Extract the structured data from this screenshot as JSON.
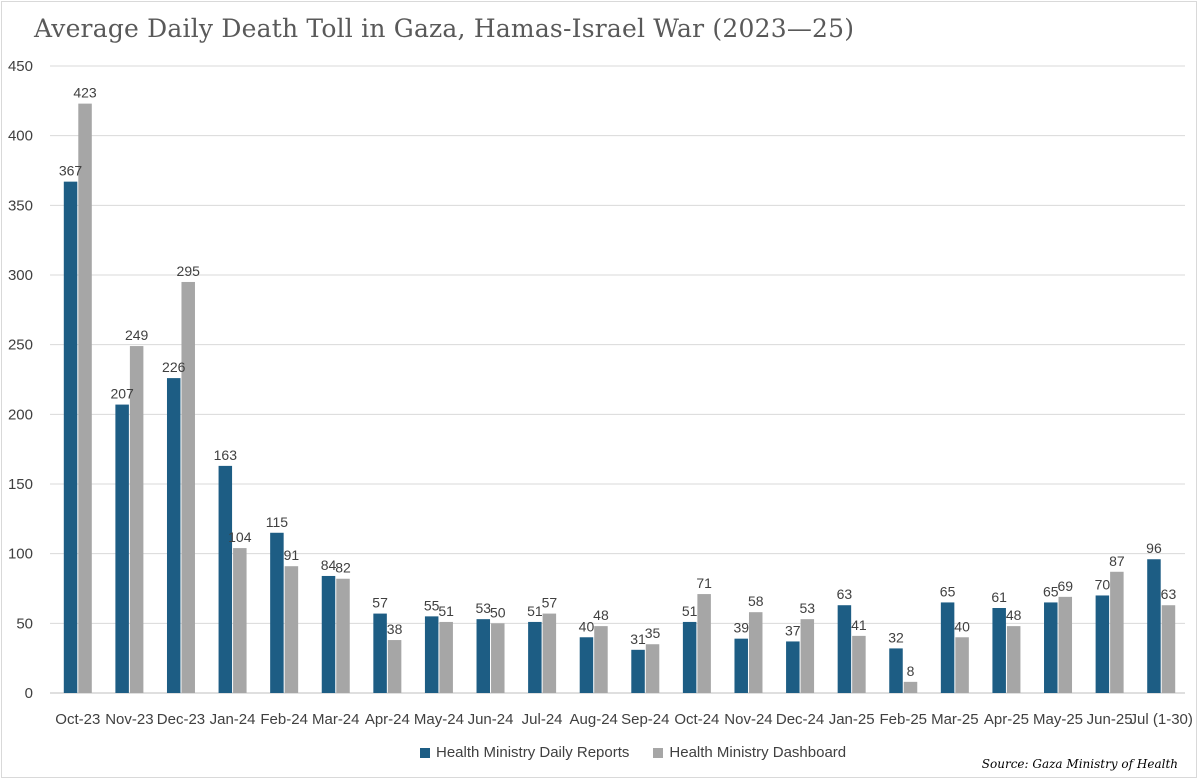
{
  "chart_data": {
    "type": "bar",
    "title": "Average Daily Death Toll in Gaza, Hamas-Israel War (2023—25)",
    "xlabel": "",
    "ylabel": "",
    "ylim": [
      0,
      450
    ],
    "yticks": [
      0,
      50,
      100,
      150,
      200,
      250,
      300,
      350,
      400,
      450
    ],
    "grid": true,
    "legend_position": "bottom",
    "categories": [
      "Oct-23",
      "Nov-23",
      "Dec-23",
      "Jan-24",
      "Feb-24",
      "Mar-24",
      "Apr-24",
      "May-24",
      "Jun-24",
      "Jul-24",
      "Aug-24",
      "Sep-24",
      "Oct-24",
      "Nov-24",
      "Dec-24",
      "Jan-25",
      "Feb-25",
      "Mar-25",
      "Apr-25",
      "May-25",
      "Jun-25",
      "Jul (1-30)"
    ],
    "series": [
      {
        "name": "Health Ministry Daily Reports",
        "color": "#1d5d84",
        "values": [
          367,
          207,
          226,
          163,
          115,
          84,
          57,
          55,
          53,
          51,
          40,
          31,
          51,
          39,
          37,
          63,
          32,
          65,
          61,
          65,
          70,
          96
        ]
      },
      {
        "name": "Health Ministry Dashboard",
        "color": "#a6a6a6",
        "values": [
          423,
          249,
          295,
          104,
          91,
          82,
          38,
          51,
          50,
          57,
          48,
          35,
          71,
          58,
          53,
          41,
          8,
          40,
          48,
          69,
          87,
          63
        ]
      }
    ],
    "source": "Source: Gaza Ministry of Health"
  }
}
